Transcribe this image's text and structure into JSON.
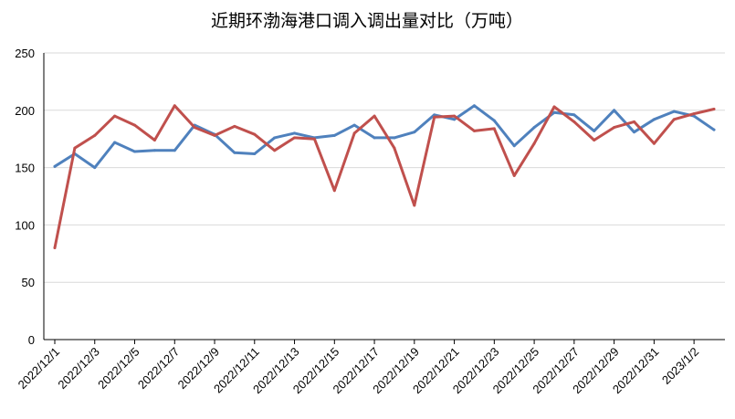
{
  "chart_data": {
    "type": "line",
    "title": "近期环渤海港口调入调出量对比（万吨）",
    "xlabel": "",
    "ylabel": "",
    "ylim": [
      0,
      250
    ],
    "yticks": [
      0,
      50,
      100,
      150,
      200,
      250
    ],
    "grid": "horizontal",
    "legend": "none",
    "x": [
      "2022/12/1",
      "2022/12/2",
      "2022/12/3",
      "2022/12/4",
      "2022/12/5",
      "2022/12/6",
      "2022/12/7",
      "2022/12/8",
      "2022/12/9",
      "2022/12/10",
      "2022/12/11",
      "2022/12/12",
      "2022/12/13",
      "2022/12/14",
      "2022/12/15",
      "2022/12/16",
      "2022/12/17",
      "2022/12/18",
      "2022/12/19",
      "2022/12/20",
      "2022/12/21",
      "2022/12/22",
      "2022/12/23",
      "2022/12/24",
      "2022/12/25",
      "2022/12/26",
      "2022/12/27",
      "2022/12/28",
      "2022/12/29",
      "2022/12/30",
      "2022/12/31",
      "2023/1/1",
      "2023/1/2",
      "2023/1/3"
    ],
    "xtick_labels": [
      "2022/12/1",
      "2022/12/3",
      "2022/12/5",
      "2022/12/7",
      "2022/12/9",
      "2022/12/11",
      "2022/12/13",
      "2022/12/15",
      "2022/12/17",
      "2022/12/19",
      "2022/12/21",
      "2022/12/23",
      "2022/12/25",
      "2022/12/27",
      "2022/12/29",
      "2022/12/31",
      "2023/1/2"
    ],
    "series": [
      {
        "color": "#4f81bd",
        "values": [
          151,
          162,
          150,
          172,
          164,
          165,
          165,
          187,
          179,
          163,
          162,
          176,
          180,
          176,
          178,
          187,
          176,
          176,
          181,
          196,
          192,
          204,
          191,
          169,
          185,
          198,
          196,
          182,
          200,
          181,
          192,
          199,
          195,
          183
        ]
      },
      {
        "color": "#c0504d",
        "values": [
          80,
          167,
          178,
          195,
          187,
          174,
          204,
          185,
          178,
          186,
          179,
          165,
          176,
          175,
          130,
          180,
          195,
          167,
          117,
          194,
          195,
          182,
          184,
          143,
          171,
          203,
          190,
          174,
          185,
          190,
          171,
          192,
          197,
          201
        ]
      }
    ]
  }
}
